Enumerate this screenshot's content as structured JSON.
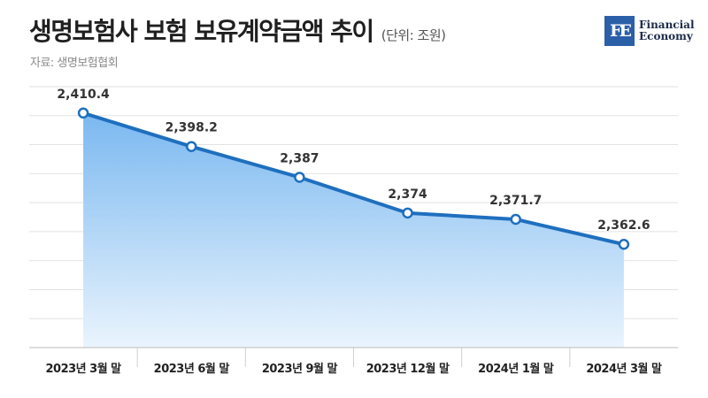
{
  "header": {
    "title": "생명보험사 보험 보유계약금액 추이",
    "unit": "(단위: 조원)",
    "source": "자료: 생명보험협회"
  },
  "logo": {
    "mark": "FE",
    "line1": "Financial",
    "line2": "Economy"
  },
  "colors": {
    "line": "#1f6fbf",
    "area_top": "#7ab8f0",
    "area_bottom": "#eaf4fd",
    "grid": "#e2e2e2",
    "label": "#333333"
  },
  "chart_data": {
    "type": "area",
    "title": "생명보험사 보험 보유계약금액 추이",
    "xlabel": "",
    "ylabel": "(단위: 조원)",
    "categories": [
      "2023년 3월 말",
      "2023년 6월 말",
      "2023년 9월 말",
      "2023년 12월 말",
      "2024년 1월 말",
      "2024년 3월 말"
    ],
    "series": [
      {
        "values": [
          2410.4,
          2398.2,
          2387,
          2374,
          2371.7,
          2362.6
        ],
        "labels": [
          "2,410.4",
          "2,398.2",
          "2,387",
          "2,374",
          "2,371.7",
          "2,362.6"
        ]
      }
    ],
    "ylim": [
      2325,
      2420
    ],
    "grid": true,
    "legend": "none"
  }
}
